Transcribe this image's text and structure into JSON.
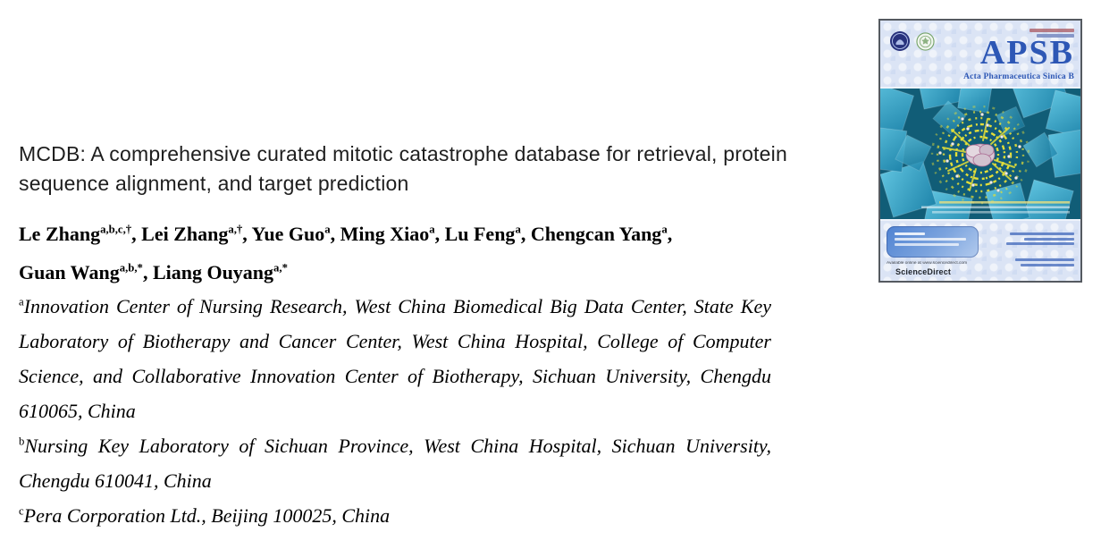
{
  "article": {
    "title_lines": [
      "MCDB: A comprehensive curated mitotic catastrophe database for retrieval, protein",
      "sequence alignment, and target prediction"
    ],
    "author_lines": [
      [
        {
          "name": "Le Zhang",
          "sup": "a,b,c,†"
        },
        {
          "name": "Lei Zhang",
          "sup": "a,†"
        },
        {
          "name": "Yue Guo",
          "sup": "a"
        },
        {
          "name": "Ming Xiao",
          "sup": "a"
        },
        {
          "name": "Lu Feng",
          "sup": "a"
        },
        {
          "name": "Chengcan Yang",
          "sup": "a"
        }
      ],
      [
        {
          "name": "Guan Wang",
          "sup": "a,b,*"
        },
        {
          "name": "Liang Ouyang",
          "sup": "a,*"
        }
      ]
    ],
    "affiliations": [
      {
        "marker": "a",
        "text": "Innovation Center of Nursing Research, West China Biomedical Big Data Center, State Key Laboratory of Biotherapy and Cancer Center, West China Hospital, College of Computer Science, and Collaborative Innovation Center of Biotherapy, Sichuan University, Chengdu 610065, China"
      },
      {
        "marker": "b",
        "text": "Nursing Key Laboratory of Sichuan Province, West China Hospital, Sichuan University, Chengdu 610041, China"
      },
      {
        "marker": "c",
        "text": "Pera Corporation Ltd., Beijing 100025, China"
      }
    ]
  },
  "journal_cover": {
    "masthead": "APSB",
    "subtitle": "Acta Pharmaceutica Sinica B",
    "available_online_label": "Available online at www.sciencedirect.com",
    "sciencedirect_label": "ScienceDirect",
    "colors": {
      "masthead_blue": "#2d57b5",
      "header_background": "#dbe4f5",
      "artwork_background": "#115d77",
      "cube_blue": "#2f9ec4",
      "molecule_yellow": "#e4de38"
    }
  }
}
